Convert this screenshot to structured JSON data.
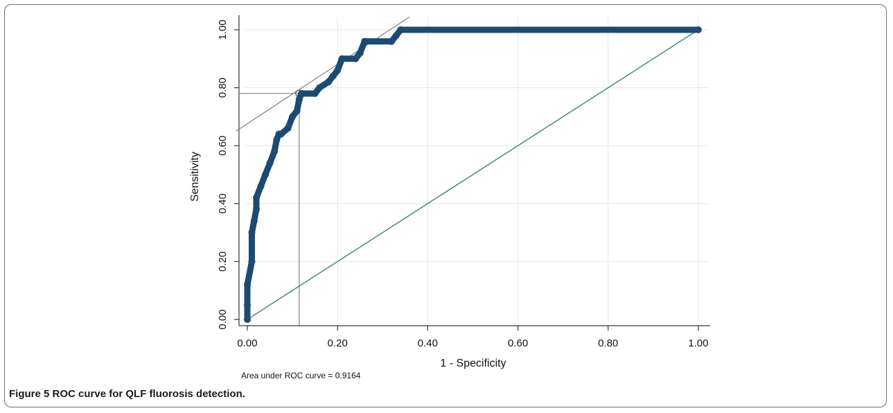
{
  "chart_data": {
    "type": "line",
    "xlabel": "1 - Specificity",
    "ylabel": "Sensitivity",
    "xlim": [
      0,
      1
    ],
    "ylim": [
      0,
      1
    ],
    "x_ticks": [
      "0.00",
      "0.20",
      "0.40",
      "0.60",
      "0.80",
      "1.00"
    ],
    "y_ticks": [
      "0.00",
      "0.20",
      "0.40",
      "0.60",
      "0.80",
      "1.00"
    ],
    "grid": true,
    "note": "Area under ROC curve = 0.9164",
    "colors": {
      "roc": "#1c4a72",
      "reference": "#4e8f88",
      "guide": "#808080",
      "grid": "#dbe8ea"
    },
    "series": [
      {
        "role": "roc",
        "x": [
          0,
          0.0,
          0.0,
          0.01,
          0.01,
          0.015,
          0.02,
          0.02,
          0.03,
          0.04,
          0.05,
          0.06,
          0.065,
          0.07,
          0.075,
          0.09,
          0.1,
          0.11,
          0.115,
          0.12,
          0.15,
          0.16,
          0.18,
          0.19,
          0.2,
          0.21,
          0.24,
          0.25,
          0.26,
          0.32,
          0.33,
          0.34,
          1.0
        ],
        "y": [
          0,
          0.05,
          0.12,
          0.2,
          0.3,
          0.34,
          0.38,
          0.42,
          0.46,
          0.5,
          0.54,
          0.58,
          0.62,
          0.64,
          0.64,
          0.66,
          0.7,
          0.72,
          0.76,
          0.78,
          0.78,
          0.8,
          0.82,
          0.84,
          0.86,
          0.9,
          0.9,
          0.92,
          0.96,
          0.96,
          0.98,
          1.0,
          1.0
        ]
      },
      {
        "role": "reference",
        "x": [
          0,
          1
        ],
        "y": [
          0,
          1
        ]
      }
    ],
    "cutoff": {
      "x": 0.115,
      "y": 0.78
    },
    "tangent": {
      "x": [
        -0.025,
        0.36
      ],
      "y": [
        0.65,
        1.045
      ]
    }
  },
  "caption": {
    "label": "Figure 5",
    "text": "ROC curve for QLF fluorosis detection."
  }
}
